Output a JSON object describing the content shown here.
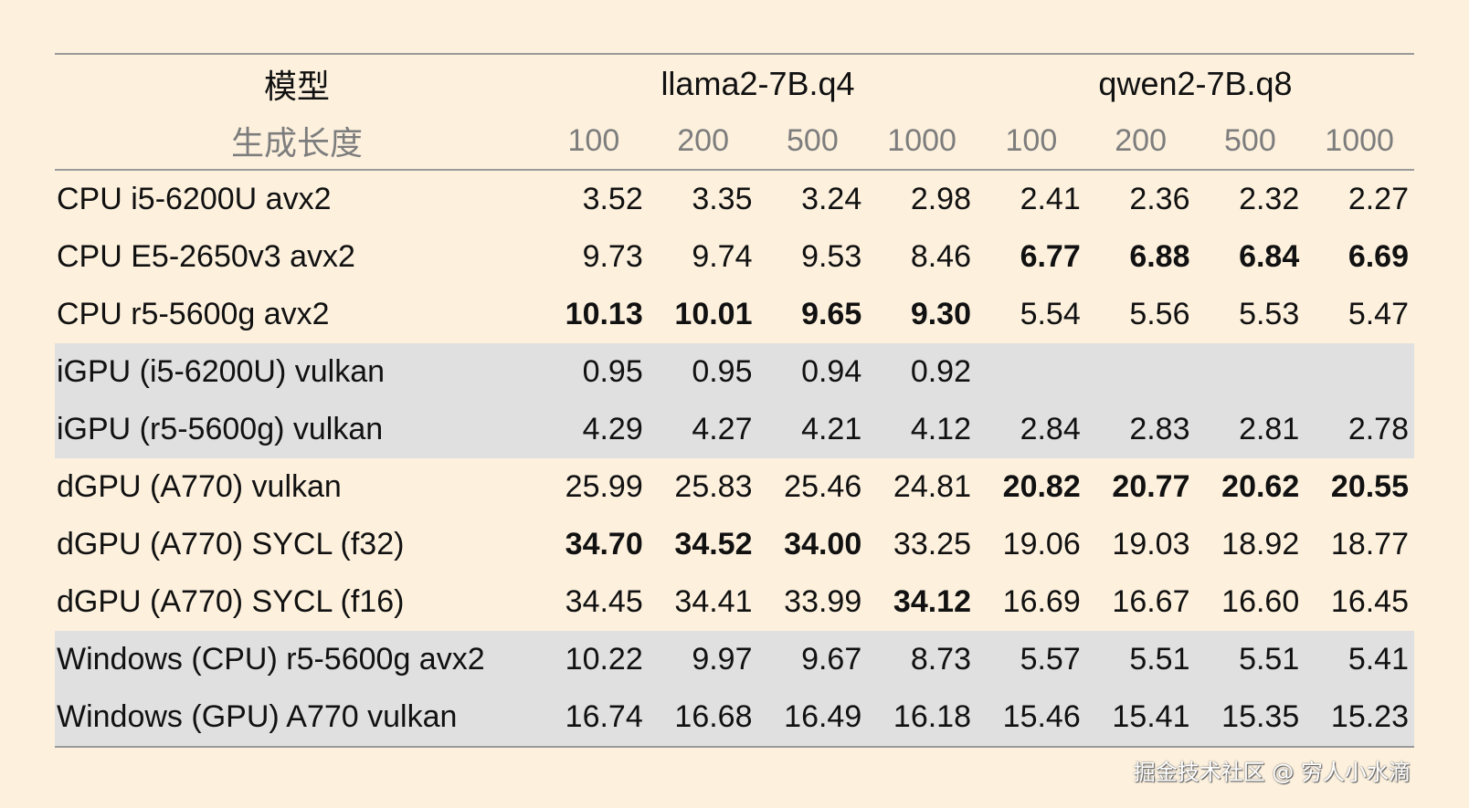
{
  "table": {
    "header": {
      "model_label": "模型",
      "length_label": "生成长度",
      "groups": [
        "llama2-7B.q4",
        "qwen2-7B.q8"
      ],
      "lengths": [
        "100",
        "200",
        "500",
        "1000",
        "100",
        "200",
        "500",
        "1000"
      ]
    },
    "rows": [
      {
        "label": "CPU i5-6200U avx2",
        "shaded": false,
        "values": [
          "3.52",
          "3.35",
          "3.24",
          "2.98",
          "2.41",
          "2.36",
          "2.32",
          "2.27"
        ],
        "bold": [
          false,
          false,
          false,
          false,
          false,
          false,
          false,
          false
        ]
      },
      {
        "label": "CPU E5-2650v3 avx2",
        "shaded": false,
        "values": [
          "9.73",
          "9.74",
          "9.53",
          "8.46",
          "6.77",
          "6.88",
          "6.84",
          "6.69"
        ],
        "bold": [
          false,
          false,
          false,
          false,
          true,
          true,
          true,
          true
        ]
      },
      {
        "label": "CPU r5-5600g avx2",
        "shaded": false,
        "values": [
          "10.13",
          "10.01",
          "9.65",
          "9.30",
          "5.54",
          "5.56",
          "5.53",
          "5.47"
        ],
        "bold": [
          true,
          true,
          true,
          true,
          false,
          false,
          false,
          false
        ]
      },
      {
        "label": "iGPU (i5-6200U) vulkan",
        "shaded": true,
        "values": [
          "0.95",
          "0.95",
          "0.94",
          "0.92",
          "",
          "",
          "",
          ""
        ],
        "bold": [
          false,
          false,
          false,
          false,
          false,
          false,
          false,
          false
        ]
      },
      {
        "label": "iGPU (r5-5600g) vulkan",
        "shaded": true,
        "values": [
          "4.29",
          "4.27",
          "4.21",
          "4.12",
          "2.84",
          "2.83",
          "2.81",
          "2.78"
        ],
        "bold": [
          false,
          false,
          false,
          false,
          false,
          false,
          false,
          false
        ]
      },
      {
        "label": "dGPU (A770) vulkan",
        "shaded": false,
        "values": [
          "25.99",
          "25.83",
          "25.46",
          "24.81",
          "20.82",
          "20.77",
          "20.62",
          "20.55"
        ],
        "bold": [
          false,
          false,
          false,
          false,
          true,
          true,
          true,
          true
        ]
      },
      {
        "label": "dGPU (A770) SYCL (f32)",
        "shaded": false,
        "values": [
          "34.70",
          "34.52",
          "34.00",
          "33.25",
          "19.06",
          "19.03",
          "18.92",
          "18.77"
        ],
        "bold": [
          true,
          true,
          true,
          false,
          false,
          false,
          false,
          false
        ]
      },
      {
        "label": "dGPU (A770) SYCL (f16)",
        "shaded": false,
        "values": [
          "34.45",
          "34.41",
          "33.99",
          "34.12",
          "16.69",
          "16.67",
          "16.60",
          "16.45"
        ],
        "bold": [
          false,
          false,
          false,
          true,
          false,
          false,
          false,
          false
        ]
      },
      {
        "label": "Windows (CPU) r5-5600g avx2",
        "shaded": true,
        "values": [
          "10.22",
          "9.97",
          "9.67",
          "8.73",
          "5.57",
          "5.51",
          "5.51",
          "5.41"
        ],
        "bold": [
          false,
          false,
          false,
          false,
          false,
          false,
          false,
          false
        ]
      },
      {
        "label": "Windows (GPU) A770 vulkan",
        "shaded": true,
        "values": [
          "16.74",
          "16.68",
          "16.49",
          "16.18",
          "15.46",
          "15.41",
          "15.35",
          "15.23"
        ],
        "bold": [
          false,
          false,
          false,
          false,
          false,
          false,
          false,
          false
        ]
      }
    ]
  },
  "watermark": "掘金技术社区 @ 穷人小水滴"
}
